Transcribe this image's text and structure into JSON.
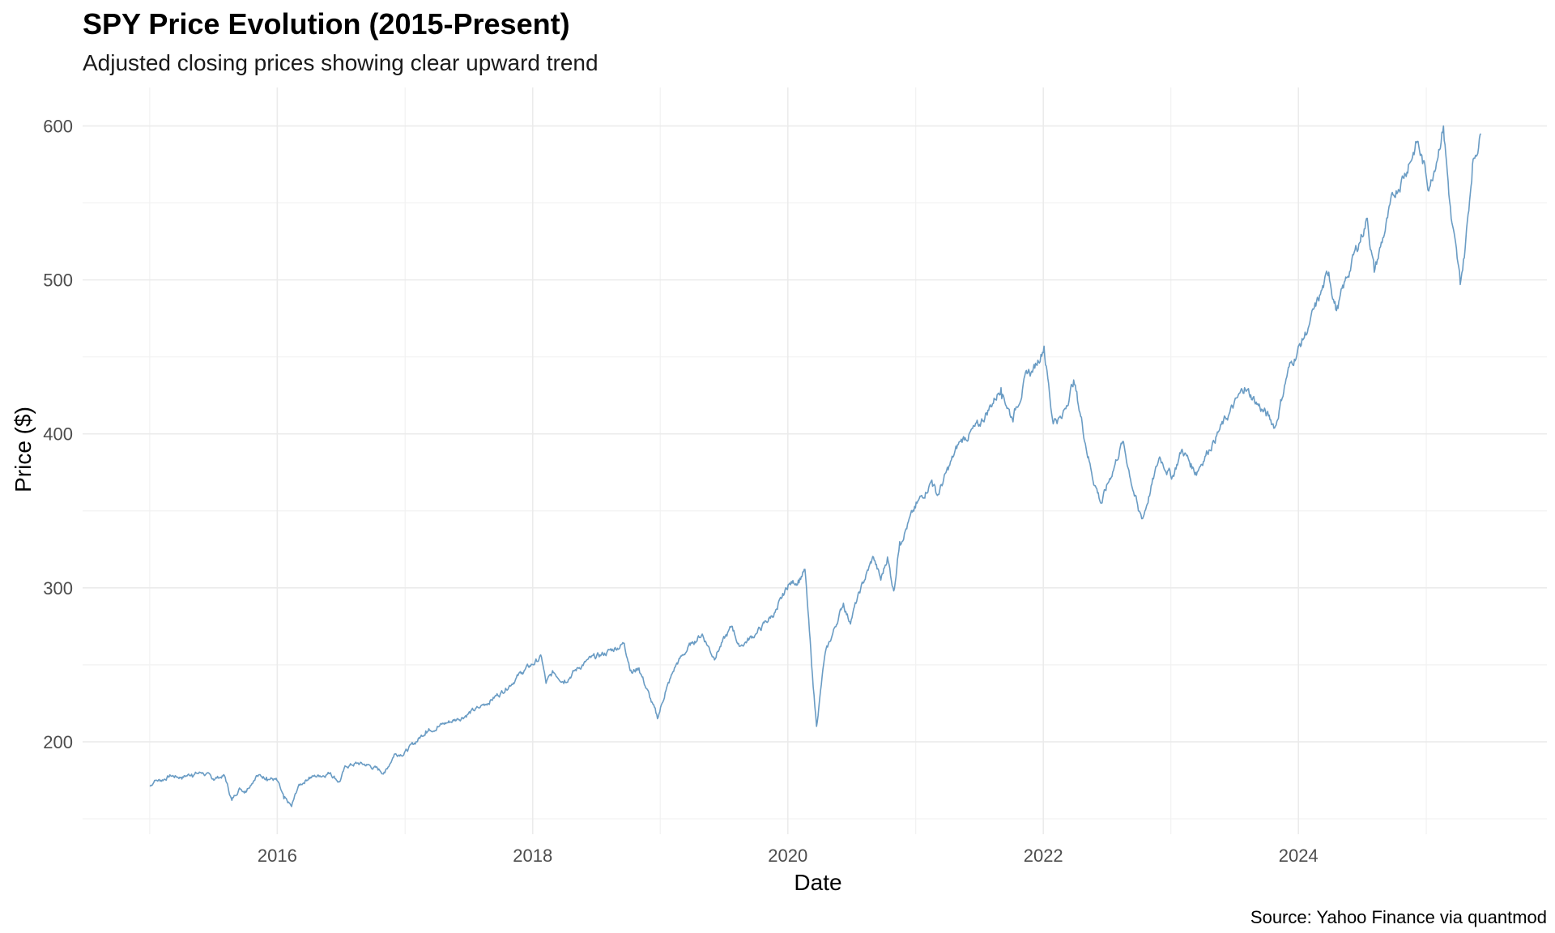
{
  "chart_data": {
    "type": "line",
    "title": "SPY Price Evolution (2015-Present)",
    "subtitle": "Adjusted closing prices showing clear upward trend",
    "xlabel": "Date",
    "ylabel": "Price ($)",
    "caption": "Source: Yahoo Finance via quantmod",
    "x_ticks": [
      "2016",
      "2018",
      "2020",
      "2022",
      "2024"
    ],
    "y_ticks": [
      200,
      300,
      400,
      500,
      600
    ],
    "xlim": [
      "2014-06-23",
      "2025-12-12"
    ],
    "ylim": [
      140,
      625
    ],
    "grid": true,
    "line_color": "#6a9cc4",
    "series": [
      {
        "x": [
          "2015-01-02",
          "2015-01-15",
          "2015-02-02",
          "2015-03-02",
          "2015-04-01",
          "2015-05-01",
          "2015-06-01",
          "2015-07-01",
          "2015-08-03",
          "2015-08-24",
          "2015-09-15",
          "2015-10-01",
          "2015-11-02",
          "2015-12-01",
          "2015-12-31",
          "2016-01-20",
          "2016-02-11",
          "2016-03-01",
          "2016-04-01",
          "2016-05-02",
          "2016-06-01",
          "2016-06-27",
          "2016-07-15",
          "2016-08-15",
          "2016-09-15",
          "2016-11-04",
          "2016-12-01",
          "2016-12-30",
          "2017-02-01",
          "2017-03-01",
          "2017-04-03",
          "2017-06-01",
          "2017-08-01",
          "2017-10-02",
          "2017-12-01",
          "2018-01-26",
          "2018-02-08",
          "2018-03-01",
          "2018-04-02",
          "2018-06-01",
          "2018-08-01",
          "2018-09-20",
          "2018-10-11",
          "2018-11-01",
          "2018-12-24",
          "2019-01-15",
          "2019-02-15",
          "2019-04-01",
          "2019-05-01",
          "2019-06-03",
          "2019-07-26",
          "2019-08-15",
          "2019-10-01",
          "2019-12-02",
          "2020-01-02",
          "2020-01-31",
          "2020-02-19",
          "2020-03-09",
          "2020-03-23",
          "2020-04-15",
          "2020-06-08",
          "2020-06-26",
          "2020-08-03",
          "2020-09-02",
          "2020-09-23",
          "2020-10-12",
          "2020-10-30",
          "2020-11-16",
          "2020-12-31",
          "2021-02-16",
          "2021-03-04",
          "2021-05-07",
          "2021-06-30",
          "2021-09-02",
          "2021-10-04",
          "2021-11-18",
          "2021-12-01",
          "2022-01-03",
          "2022-01-27",
          "2022-02-23",
          "2022-03-29",
          "2022-05-19",
          "2022-06-16",
          "2022-08-16",
          "2022-09-30",
          "2022-10-12",
          "2022-11-30",
          "2023-01-05",
          "2023-02-02",
          "2023-03-13",
          "2023-05-01",
          "2023-07-31",
          "2023-10-27",
          "2023-12-01",
          "2024-01-31",
          "2024-03-28",
          "2024-04-19",
          "2024-05-31",
          "2024-07-16",
          "2024-08-05",
          "2024-09-30",
          "2024-11-11",
          "2024-12-06",
          "2025-01-10",
          "2025-02-19",
          "2025-03-13",
          "2025-04-08",
          "2025-04-22",
          "2025-05-13",
          "2025-06-06"
        ],
        "values": [
          171,
          175,
          175,
          178,
          177,
          179,
          180,
          176,
          178,
          162,
          170,
          168,
          178,
          177,
          175,
          163,
          158,
          171,
          177,
          178,
          180,
          174,
          184,
          186,
          185,
          180,
          192,
          193,
          200,
          207,
          210,
          215,
          222,
          232,
          245,
          255,
          238,
          245,
          240,
          252,
          258,
          264,
          245,
          248,
          215,
          232,
          250,
          264,
          270,
          255,
          275,
          262,
          270,
          286,
          302,
          305,
          312,
          250,
          210,
          255,
          290,
          278,
          303,
          320,
          305,
          320,
          298,
          330,
          352,
          370,
          360,
          395,
          405,
          430,
          410,
          440,
          440,
          457,
          410,
          410,
          435,
          375,
          355,
          395,
          350,
          345,
          385,
          372,
          390,
          375,
          395,
          430,
          405,
          440,
          470,
          505,
          480,
          510,
          540,
          505,
          555,
          575,
          590,
          560,
          600,
          540,
          497,
          520,
          575,
          595
        ]
      }
    ]
  }
}
